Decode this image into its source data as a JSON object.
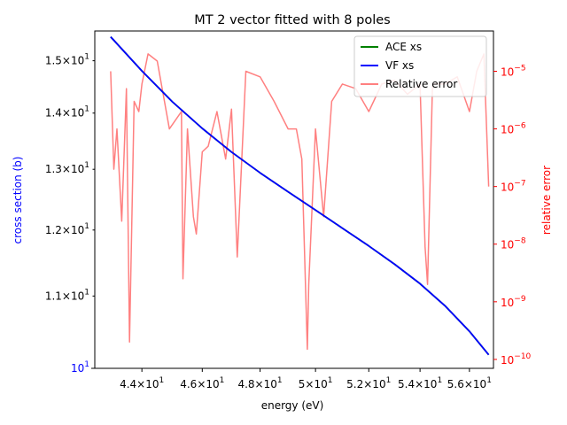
{
  "chart_data": {
    "type": "line",
    "title": "MT 2 vector fitted with 8 poles",
    "xlabel": "energy (eV)",
    "ylabel_left": "cross section (b)",
    "ylabel_right": "relative error",
    "x_scale": "log",
    "y_left_scale": "log",
    "y_right_scale": "log",
    "xlim": [
      42.5,
      57.0
    ],
    "ylim_left": [
      10.0,
      15.6
    ],
    "ylim_right": [
      7e-11,
      5e-05
    ],
    "x_ticks": [
      {
        "value": 44,
        "base": "4.4",
        "exp": "1"
      },
      {
        "value": 46,
        "base": "4.6",
        "exp": "1"
      },
      {
        "value": 48,
        "base": "4.8",
        "exp": "1"
      },
      {
        "value": 50,
        "base": "5",
        "exp": "1"
      },
      {
        "value": 52,
        "base": "5.2",
        "exp": "1"
      },
      {
        "value": 54,
        "base": "5.4",
        "exp": "1"
      },
      {
        "value": 56,
        "base": "5.6",
        "exp": "1"
      }
    ],
    "y_left_ticks": [
      {
        "value": 10,
        "base": "10",
        "exp": "1"
      },
      {
        "value": 11,
        "base": "1.1",
        "exp": "1"
      },
      {
        "value": 12,
        "base": "1.2",
        "exp": "1"
      },
      {
        "value": 13,
        "base": "1.3",
        "exp": "1"
      },
      {
        "value": 14,
        "base": "1.4",
        "exp": "1"
      },
      {
        "value": 15,
        "base": "1.5",
        "exp": "1"
      }
    ],
    "y_right_ticks": [
      {
        "value": 1e-10,
        "base": "10",
        "exp": "−10"
      },
      {
        "value": 1e-09,
        "base": "10",
        "exp": "−9"
      },
      {
        "value": 1e-08,
        "base": "10",
        "exp": "−8"
      },
      {
        "value": 1e-07,
        "base": "10",
        "exp": "−7"
      },
      {
        "value": 1e-06,
        "base": "10",
        "exp": "−6"
      },
      {
        "value": 1e-05,
        "base": "10",
        "exp": "−5"
      }
    ],
    "legend_position": "top-right",
    "series": [
      {
        "name": "ACE xs",
        "color": "#008000",
        "axis": "left",
        "x": [
          43.0,
          44.0,
          45.0,
          46.0,
          47.0,
          48.0,
          49.0,
          50.0,
          51.0,
          52.0,
          53.0,
          54.0,
          55.0,
          56.0,
          56.8
        ],
        "y": [
          15.48,
          14.8,
          14.21,
          13.72,
          13.3,
          12.94,
          12.62,
          12.32,
          12.03,
          11.75,
          11.47,
          11.18,
          10.86,
          10.5,
          10.18
        ]
      },
      {
        "name": "VF xs",
        "color": "#0000ff",
        "axis": "left",
        "x": [
          43.0,
          44.0,
          45.0,
          46.0,
          47.0,
          48.0,
          49.0,
          50.0,
          51.0,
          52.0,
          53.0,
          54.0,
          55.0,
          56.0,
          56.8
        ],
        "y": [
          15.48,
          14.8,
          14.21,
          13.72,
          13.3,
          12.94,
          12.62,
          12.32,
          12.03,
          11.75,
          11.47,
          11.18,
          10.86,
          10.5,
          10.18
        ]
      },
      {
        "name": "Relative error",
        "color": "#ff8080",
        "axis": "right",
        "x": [
          43.0,
          43.1,
          43.2,
          43.35,
          43.5,
          43.6,
          43.75,
          43.9,
          44.0,
          44.2,
          44.5,
          44.9,
          45.3,
          45.35,
          45.5,
          45.7,
          45.8,
          46.0,
          46.2,
          46.5,
          46.8,
          47.0,
          47.2,
          47.5,
          48.0,
          48.5,
          49.0,
          49.3,
          49.5,
          49.7,
          49.75,
          50.0,
          50.3,
          50.6,
          51.0,
          51.5,
          52.0,
          52.5,
          53.0,
          53.5,
          54.0,
          54.2,
          54.3,
          54.5,
          55.0,
          55.5,
          56.0,
          56.3,
          56.6,
          56.8
        ],
        "y": [
          1e-05,
          2e-07,
          1e-06,
          2.5e-08,
          5e-06,
          2e-10,
          3e-06,
          2e-06,
          6e-06,
          2e-05,
          1.5e-05,
          1e-06,
          2e-06,
          2.5e-09,
          1e-06,
          3e-08,
          1.5e-08,
          4e-07,
          5e-07,
          2e-06,
          3e-07,
          2.2e-06,
          6e-09,
          1e-05,
          8e-06,
          3e-06,
          1e-06,
          1e-06,
          3e-07,
          1.5e-10,
          2e-09,
          1e-06,
          3e-08,
          3e-06,
          6e-06,
          5e-06,
          2e-06,
          6e-06,
          7e-06,
          4e-06,
          6e-06,
          9e-09,
          2e-09,
          6e-06,
          6e-06,
          8e-06,
          2e-06,
          1e-05,
          2e-05,
          1e-07
        ]
      }
    ]
  }
}
